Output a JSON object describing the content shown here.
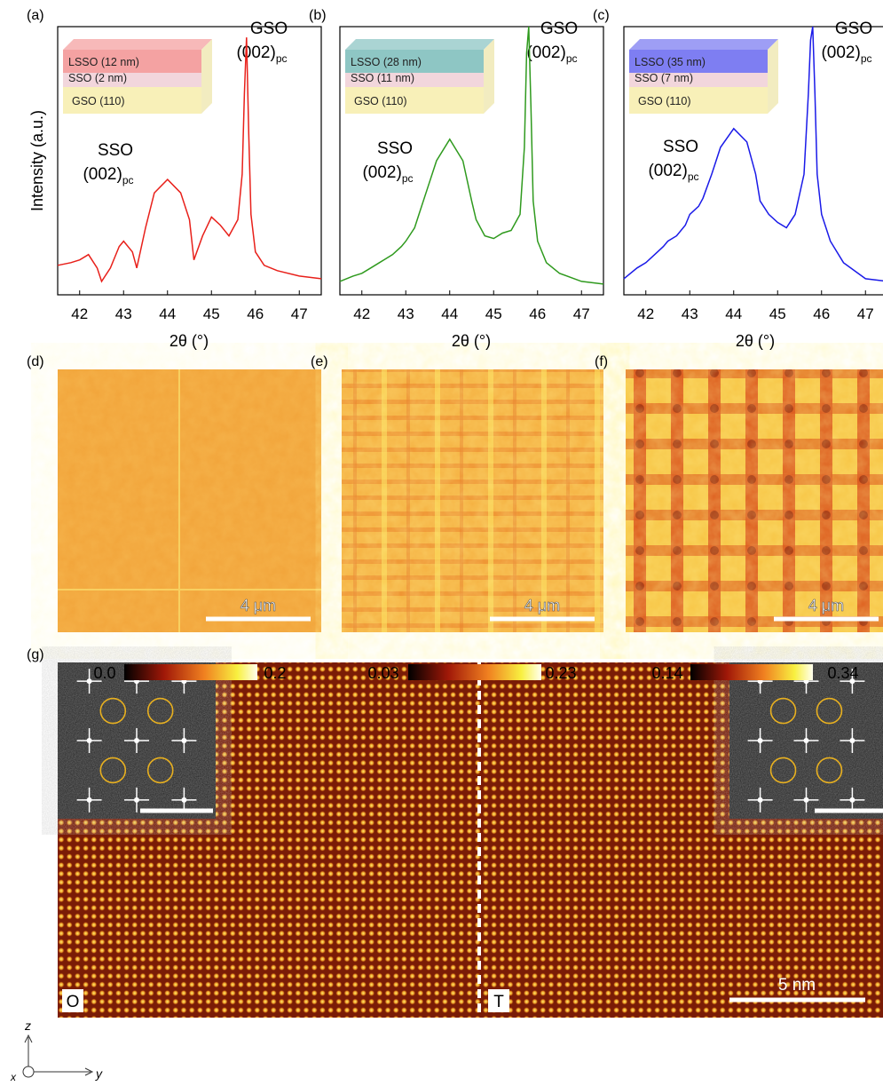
{
  "chart_data": [
    {
      "type": "line",
      "panel_label": "(a)",
      "ylabel": "Intensity (a.u.)",
      "xlabel": "2θ (°)",
      "x": [
        41.5,
        41.8,
        42.0,
        42.2,
        42.4,
        42.5,
        42.7,
        42.9,
        43.0,
        43.2,
        43.3,
        43.5,
        43.7,
        44.0,
        44.3,
        44.5,
        44.6,
        44.8,
        45.0,
        45.2,
        45.4,
        45.6,
        45.7,
        45.75,
        45.8,
        45.85,
        45.9,
        46.0,
        46.2,
        46.5,
        47.0,
        47.5
      ],
      "values": [
        0.11,
        0.12,
        0.13,
        0.15,
        0.1,
        0.05,
        0.1,
        0.18,
        0.2,
        0.16,
        0.1,
        0.25,
        0.38,
        0.43,
        0.38,
        0.28,
        0.13,
        0.22,
        0.29,
        0.26,
        0.22,
        0.28,
        0.45,
        0.75,
        0.96,
        0.6,
        0.3,
        0.16,
        0.11,
        0.09,
        0.07,
        0.06
      ],
      "color": "#e8201a",
      "xlim": [
        41.5,
        47.5
      ],
      "ylim": [
        0,
        1
      ],
      "xticks": [
        42,
        43,
        44,
        45,
        46,
        47
      ],
      "stack": {
        "layers": [
          "LSSO (12 nm)",
          "SSO (2 nm)",
          "GSO (110)"
        ],
        "color": "#f4a2a2"
      },
      "annotations": [
        {
          "name": "SSO",
          "index": "(002)",
          "subscript": "pc"
        },
        {
          "name": "GSO",
          "index": "(002)",
          "subscript": "pc"
        }
      ]
    },
    {
      "type": "line",
      "panel_label": "(b)",
      "xlabel": "2θ (°)",
      "x": [
        41.5,
        41.8,
        42.0,
        42.2,
        42.4,
        42.5,
        42.7,
        42.9,
        43.0,
        43.2,
        43.3,
        43.5,
        43.7,
        44.0,
        44.3,
        44.5,
        44.6,
        44.8,
        45.0,
        45.2,
        45.4,
        45.6,
        45.7,
        45.75,
        45.8,
        45.85,
        45.9,
        46.0,
        46.2,
        46.5,
        47.0,
        47.5
      ],
      "values": [
        0.05,
        0.07,
        0.08,
        0.1,
        0.12,
        0.13,
        0.15,
        0.18,
        0.2,
        0.25,
        0.3,
        0.4,
        0.5,
        0.58,
        0.5,
        0.35,
        0.28,
        0.22,
        0.21,
        0.23,
        0.24,
        0.3,
        0.55,
        0.9,
        1.0,
        0.7,
        0.35,
        0.2,
        0.12,
        0.08,
        0.05,
        0.04
      ],
      "color": "#2f9a1e",
      "xlim": [
        41.5,
        47.5
      ],
      "ylim": [
        0,
        1
      ],
      "xticks": [
        42,
        43,
        44,
        45,
        46,
        47
      ],
      "stack": {
        "layers": [
          "LSSO (28 nm)",
          "SSO (11 nm)",
          "GSO (110)"
        ],
        "color": "#8ec6c4"
      },
      "annotations": [
        {
          "name": "SSO",
          "index": "(002)",
          "subscript": "pc"
        },
        {
          "name": "GSO",
          "index": "(002)",
          "subscript": "pc"
        }
      ]
    },
    {
      "type": "line",
      "panel_label": "(c)",
      "xlabel": "2θ (°)",
      "x": [
        41.5,
        41.8,
        42.0,
        42.2,
        42.4,
        42.5,
        42.7,
        42.9,
        43.0,
        43.2,
        43.3,
        43.5,
        43.7,
        44.0,
        44.3,
        44.5,
        44.6,
        44.8,
        45.0,
        45.2,
        45.4,
        45.6,
        45.7,
        45.75,
        45.8,
        45.85,
        45.9,
        46.0,
        46.2,
        46.5,
        47.0,
        47.5
      ],
      "values": [
        0.06,
        0.1,
        0.12,
        0.15,
        0.18,
        0.2,
        0.22,
        0.26,
        0.3,
        0.33,
        0.36,
        0.45,
        0.55,
        0.62,
        0.57,
        0.45,
        0.35,
        0.3,
        0.27,
        0.25,
        0.3,
        0.45,
        0.75,
        0.95,
        1.0,
        0.75,
        0.45,
        0.3,
        0.2,
        0.12,
        0.06,
        0.05
      ],
      "color": "#1a1ae8",
      "xlim": [
        41.5,
        47.5
      ],
      "ylim": [
        0,
        1
      ],
      "xticks": [
        42,
        43,
        44,
        45,
        46,
        47
      ],
      "stack": {
        "layers": [
          "LSSO (35 nm)",
          "SSO (7 nm)",
          "GSO (110)"
        ],
        "color": "#7e7ef2"
      },
      "annotations": [
        {
          "name": "SSO",
          "index": "(002)",
          "subscript": "pc"
        },
        {
          "name": "GSO",
          "index": "(002)",
          "subscript": "pc"
        }
      ]
    }
  ],
  "afm_panels": [
    {
      "label": "(d)",
      "scale_bar": "4 μm",
      "colorbar": {
        "min": {
          "value": 0,
          "label": "0.0"
        },
        "max": 0.2
      }
    },
    {
      "label": "(e)",
      "scale_bar": "4 μm",
      "colorbar": {
        "min": 0.03,
        "max": 0.23
      }
    },
    {
      "label": "(f)",
      "scale_bar": "4 μm",
      "colorbar": {
        "min": 0.14,
        "max": 0.34
      }
    }
  ],
  "stem": {
    "label": "(g)",
    "scale_bar": "5 nm",
    "regions": [
      "O",
      "T"
    ]
  },
  "axes_glyph": {
    "vertical": "z",
    "out_of_plane": "x",
    "horizontal": "y"
  }
}
